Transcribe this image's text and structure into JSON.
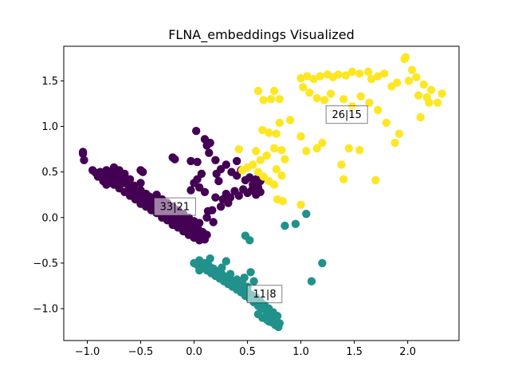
{
  "chart_data": {
    "type": "scatter",
    "title": "FLNA_embeddings Visualized",
    "xlabel": "",
    "ylabel": "",
    "xlim": [
      -1.22,
      2.48
    ],
    "ylim": [
      -1.35,
      1.88
    ],
    "xticks": [
      "−1.0",
      "−0.5",
      "0.0",
      "0.5",
      "1.0",
      "1.5",
      "2.0"
    ],
    "xtick_values": [
      -1.0,
      -0.5,
      0.0,
      0.5,
      1.0,
      1.5,
      2.0
    ],
    "yticks": [
      "−1.0",
      "−0.5",
      "0.0",
      "0.5",
      "1.0",
      "1.5"
    ],
    "ytick_values": [
      -1.0,
      -0.5,
      0.0,
      0.5,
      1.0,
      1.5
    ],
    "grid": false,
    "series": [
      {
        "color": "#440154",
        "points": [
          [
            -1.04,
            0.72
          ],
          [
            -1.03,
            0.63
          ],
          [
            -1.04,
            0.7
          ],
          [
            -0.95,
            0.52
          ],
          [
            -0.92,
            0.49
          ],
          [
            -0.9,
            0.45
          ],
          [
            -0.88,
            0.5
          ],
          [
            -0.86,
            0.47
          ],
          [
            -0.84,
            0.44
          ],
          [
            -0.82,
            0.52
          ],
          [
            -0.8,
            0.48
          ],
          [
            -0.78,
            0.45
          ],
          [
            -0.76,
            0.5
          ],
          [
            -0.74,
            0.43
          ],
          [
            -0.72,
            0.47
          ],
          [
            -0.7,
            0.4
          ],
          [
            -0.68,
            0.44
          ],
          [
            -0.66,
            0.38
          ],
          [
            -0.64,
            0.42
          ],
          [
            -0.62,
            0.36
          ],
          [
            -0.6,
            0.33
          ],
          [
            -0.58,
            0.3
          ],
          [
            -0.56,
            0.35
          ],
          [
            -0.54,
            0.28
          ],
          [
            -0.52,
            0.25
          ],
          [
            -0.5,
            0.3
          ],
          [
            -0.48,
            0.22
          ],
          [
            -0.46,
            0.26
          ],
          [
            -0.44,
            0.19
          ],
          [
            -0.42,
            0.23
          ],
          [
            -0.4,
            0.16
          ],
          [
            -0.38,
            0.2
          ],
          [
            -0.36,
            0.13
          ],
          [
            -0.34,
            0.17
          ],
          [
            -0.32,
            0.1
          ],
          [
            -0.3,
            0.06
          ],
          [
            -0.28,
            0.12
          ],
          [
            -0.26,
            0.03
          ],
          [
            -0.24,
            0.08
          ],
          [
            -0.22,
            0.0
          ],
          [
            -0.2,
            0.05
          ],
          [
            -0.18,
            -0.03
          ],
          [
            -0.16,
            0.02
          ],
          [
            -0.14,
            -0.06
          ],
          [
            -0.12,
            -0.01
          ],
          [
            -0.1,
            -0.09
          ],
          [
            -0.08,
            -0.04
          ],
          [
            -0.06,
            -0.12
          ],
          [
            -0.04,
            -0.07
          ],
          [
            -0.02,
            -0.15
          ],
          [
            0.0,
            -0.1
          ],
          [
            0.02,
            -0.18
          ],
          [
            0.04,
            -0.13
          ],
          [
            0.06,
            -0.21
          ],
          [
            0.08,
            -0.16
          ],
          [
            0.1,
            -0.24
          ],
          [
            0.12,
            -0.19
          ],
          [
            -0.85,
            0.4
          ],
          [
            -0.8,
            0.38
          ],
          [
            -0.75,
            0.36
          ],
          [
            -0.7,
            0.32
          ],
          [
            -0.65,
            0.28
          ],
          [
            -0.6,
            0.24
          ],
          [
            -0.55,
            0.2
          ],
          [
            -0.5,
            0.15
          ],
          [
            -0.45,
            0.12
          ],
          [
            -0.4,
            0.08
          ],
          [
            -0.35,
            0.05
          ],
          [
            -0.3,
            0.0
          ],
          [
            -0.25,
            -0.03
          ],
          [
            -0.2,
            -0.08
          ],
          [
            -0.15,
            -0.11
          ],
          [
            -0.1,
            -0.15
          ],
          [
            -0.05,
            -0.19
          ],
          [
            0.0,
            -0.22
          ],
          [
            0.05,
            -0.25
          ],
          [
            -0.5,
            0.52
          ],
          [
            -0.48,
            0.5
          ],
          [
            -0.2,
            0.66
          ],
          [
            -0.18,
            0.64
          ],
          [
            -0.03,
            0.62
          ],
          [
            0.03,
            0.61
          ],
          [
            0.02,
            0.95
          ],
          [
            0.1,
            0.86
          ],
          [
            0.12,
            0.79
          ],
          [
            0.14,
            0.71
          ],
          [
            0.15,
            0.82
          ],
          [
            0.2,
            0.63
          ],
          [
            0.25,
            0.53
          ],
          [
            0.3,
            0.58
          ],
          [
            0.35,
            0.5
          ],
          [
            0.4,
            0.46
          ],
          [
            0.44,
            0.52
          ],
          [
            0.48,
            0.41
          ],
          [
            0.52,
            0.44
          ],
          [
            0.55,
            0.36
          ],
          [
            0.58,
            0.42
          ],
          [
            0.6,
            0.33
          ],
          [
            0.62,
            0.4
          ],
          [
            0.62,
            0.28
          ],
          [
            0.58,
            0.25
          ],
          [
            0.54,
            0.3
          ],
          [
            0.5,
            0.27
          ],
          [
            0.46,
            0.31
          ],
          [
            0.42,
            0.24
          ],
          [
            0.38,
            0.29
          ],
          [
            0.34,
            0.22
          ],
          [
            0.3,
            0.26
          ],
          [
            0.27,
            0.2
          ],
          [
            0.23,
            0.4
          ],
          [
            0.21,
            0.48
          ],
          [
            0.4,
            0.62
          ],
          [
            0.32,
            0.16
          ],
          [
            0.17,
            0.08
          ],
          [
            0.13,
            0.07
          ],
          [
            0.1,
            0.28
          ],
          [
            0.12,
            0.0
          ],
          [
            0.2,
            0.22
          ],
          [
            0.18,
            -0.05
          ],
          [
            0.25,
            0.12
          ],
          [
            0.05,
            0.33
          ],
          [
            0.0,
            0.38
          ],
          [
            -0.03,
            0.3
          ],
          [
            0.07,
            0.48
          ],
          [
            0.03,
            0.42
          ],
          [
            -0.5,
            0.38
          ],
          [
            -0.55,
            0.3
          ],
          [
            -0.45,
            0.26
          ],
          [
            -0.4,
            0.22
          ],
          [
            -0.35,
            0.25
          ],
          [
            -0.3,
            0.2
          ],
          [
            -0.25,
            0.16
          ],
          [
            -0.2,
            0.12
          ],
          [
            -0.15,
            0.08
          ],
          [
            -0.1,
            0.04
          ],
          [
            -0.05,
            0.0
          ],
          [
            0.0,
            -0.04
          ],
          [
            0.05,
            -0.06
          ],
          [
            -0.6,
            0.42
          ],
          [
            -0.65,
            0.48
          ],
          [
            -0.7,
            0.52
          ],
          [
            -0.75,
            0.55
          ],
          [
            -0.78,
            0.4
          ],
          [
            -0.82,
            0.36
          ],
          [
            -0.72,
            0.38
          ]
        ]
      },
      {
        "color": "#21918c",
        "points": [
          [
            0.0,
            -0.5
          ],
          [
            0.03,
            -0.52
          ],
          [
            0.05,
            -0.47
          ],
          [
            0.08,
            -0.55
          ],
          [
            0.1,
            -0.5
          ],
          [
            0.12,
            -0.58
          ],
          [
            0.14,
            -0.53
          ],
          [
            0.16,
            -0.61
          ],
          [
            0.18,
            -0.56
          ],
          [
            0.2,
            -0.64
          ],
          [
            0.22,
            -0.59
          ],
          [
            0.24,
            -0.67
          ],
          [
            0.26,
            -0.62
          ],
          [
            0.28,
            -0.7
          ],
          [
            0.3,
            -0.65
          ],
          [
            0.32,
            -0.73
          ],
          [
            0.34,
            -0.68
          ],
          [
            0.36,
            -0.76
          ],
          [
            0.38,
            -0.71
          ],
          [
            0.4,
            -0.79
          ],
          [
            0.42,
            -0.74
          ],
          [
            0.44,
            -0.82
          ],
          [
            0.46,
            -0.78
          ],
          [
            0.48,
            -0.86
          ],
          [
            0.5,
            -0.81
          ],
          [
            0.52,
            -0.89
          ],
          [
            0.54,
            -0.85
          ],
          [
            0.56,
            -0.93
          ],
          [
            0.58,
            -0.88
          ],
          [
            0.6,
            -0.97
          ],
          [
            0.62,
            -0.92
          ],
          [
            0.64,
            -1.0
          ],
          [
            0.66,
            -0.96
          ],
          [
            0.68,
            -1.04
          ],
          [
            0.7,
            -1.0
          ],
          [
            0.72,
            -1.08
          ],
          [
            0.74,
            -1.04
          ],
          [
            0.76,
            -1.12
          ],
          [
            0.78,
            -1.08
          ],
          [
            0.8,
            -1.16
          ],
          [
            0.79,
            -1.2
          ],
          [
            0.73,
            -1.15
          ],
          [
            0.68,
            -1.12
          ],
          [
            0.64,
            -1.1
          ],
          [
            0.6,
            -1.06
          ],
          [
            0.34,
            -0.62
          ],
          [
            0.4,
            -0.68
          ],
          [
            0.45,
            -0.72
          ],
          [
            0.5,
            -0.76
          ],
          [
            0.26,
            -0.55
          ],
          [
            0.3,
            -0.48
          ],
          [
            0.15,
            -0.45
          ],
          [
            0.05,
            -0.58
          ],
          [
            0.48,
            -0.2
          ],
          [
            0.52,
            -0.25
          ],
          [
            1.05,
            0.04
          ],
          [
            0.95,
            -0.07
          ],
          [
            0.85,
            -0.09
          ],
          [
            1.2,
            -0.5
          ],
          [
            1.1,
            -0.7
          ],
          [
            0.53,
            -0.6
          ],
          [
            0.56,
            -0.7
          ],
          [
            0.47,
            -0.66
          ],
          [
            0.7,
            -1.14
          ],
          [
            0.76,
            -1.18
          ]
        ]
      },
      {
        "color": "#fde725",
        "points": [
          [
            1.98,
            1.76
          ],
          [
            1.97,
            1.74
          ],
          [
            2.04,
            1.62
          ],
          [
            2.08,
            1.54
          ],
          [
            2.01,
            1.5
          ],
          [
            2.15,
            1.46
          ],
          [
            2.22,
            1.4
          ],
          [
            1.9,
            1.48
          ],
          [
            1.85,
            1.44
          ],
          [
            1.78,
            1.58
          ],
          [
            1.72,
            1.55
          ],
          [
            1.66,
            1.52
          ],
          [
            1.63,
            1.6
          ],
          [
            1.55,
            1.58
          ],
          [
            1.48,
            1.6
          ],
          [
            1.42,
            1.56
          ],
          [
            1.35,
            1.57
          ],
          [
            1.3,
            1.54
          ],
          [
            1.25,
            1.57
          ],
          [
            1.18,
            1.55
          ],
          [
            1.12,
            1.52
          ],
          [
            1.06,
            1.55
          ],
          [
            1.0,
            1.53
          ],
          [
            1.02,
            1.43
          ],
          [
            1.08,
            1.37
          ],
          [
            1.15,
            1.31
          ],
          [
            1.22,
            1.29
          ],
          [
            1.28,
            1.36
          ],
          [
            1.4,
            1.3
          ],
          [
            1.48,
            1.22
          ],
          [
            1.56,
            1.33
          ],
          [
            1.64,
            1.26
          ],
          [
            1.72,
            1.18
          ],
          [
            1.8,
            1.04
          ],
          [
            1.92,
            0.92
          ],
          [
            1.88,
            0.82
          ],
          [
            1.7,
            0.41
          ],
          [
            1.55,
            0.74
          ],
          [
            1.45,
            0.76
          ],
          [
            1.38,
            0.58
          ],
          [
            1.4,
            0.42
          ],
          [
            1.2,
            0.82
          ],
          [
            1.15,
            0.76
          ],
          [
            1.05,
            0.73
          ],
          [
            1.0,
            0.89
          ],
          [
            0.9,
            1.07
          ],
          [
            0.8,
            1.04
          ],
          [
            0.75,
            1.39
          ],
          [
            0.8,
            1.3
          ],
          [
            0.72,
            1.3
          ],
          [
            0.65,
            1.29
          ],
          [
            0.6,
            1.39
          ],
          [
            0.7,
            0.93
          ],
          [
            0.77,
            0.92
          ],
          [
            0.75,
            0.76
          ],
          [
            0.82,
            0.74
          ],
          [
            0.85,
            0.64
          ],
          [
            0.68,
            0.68
          ],
          [
            0.62,
            0.63
          ],
          [
            0.55,
            0.58
          ],
          [
            0.5,
            0.55
          ],
          [
            0.45,
            0.52
          ],
          [
            0.6,
            0.5
          ],
          [
            0.65,
            0.45
          ],
          [
            0.7,
            0.4
          ],
          [
            0.75,
            0.36
          ],
          [
            0.77,
            0.53
          ],
          [
            0.82,
            0.46
          ],
          [
            0.78,
            0.2
          ],
          [
            0.83,
            0.18
          ],
          [
            1.0,
            0.14
          ],
          [
            0.64,
            0.96
          ],
          [
            0.42,
            0.75
          ],
          [
            0.58,
            0.73
          ],
          [
            2.12,
            1.1
          ],
          [
            2.2,
            1.26
          ],
          [
            2.32,
            1.36
          ],
          [
            2.28,
            1.26
          ],
          [
            2.18,
            1.32
          ],
          [
            2.1,
            1.34
          ]
        ]
      }
    ],
    "annotations": [
      {
        "label": "33|21",
        "x": -0.18,
        "y": 0.12
      },
      {
        "label": "11|8",
        "x": 0.66,
        "y": -0.84
      },
      {
        "label": "26|15",
        "x": 1.43,
        "y": 1.13
      }
    ]
  }
}
